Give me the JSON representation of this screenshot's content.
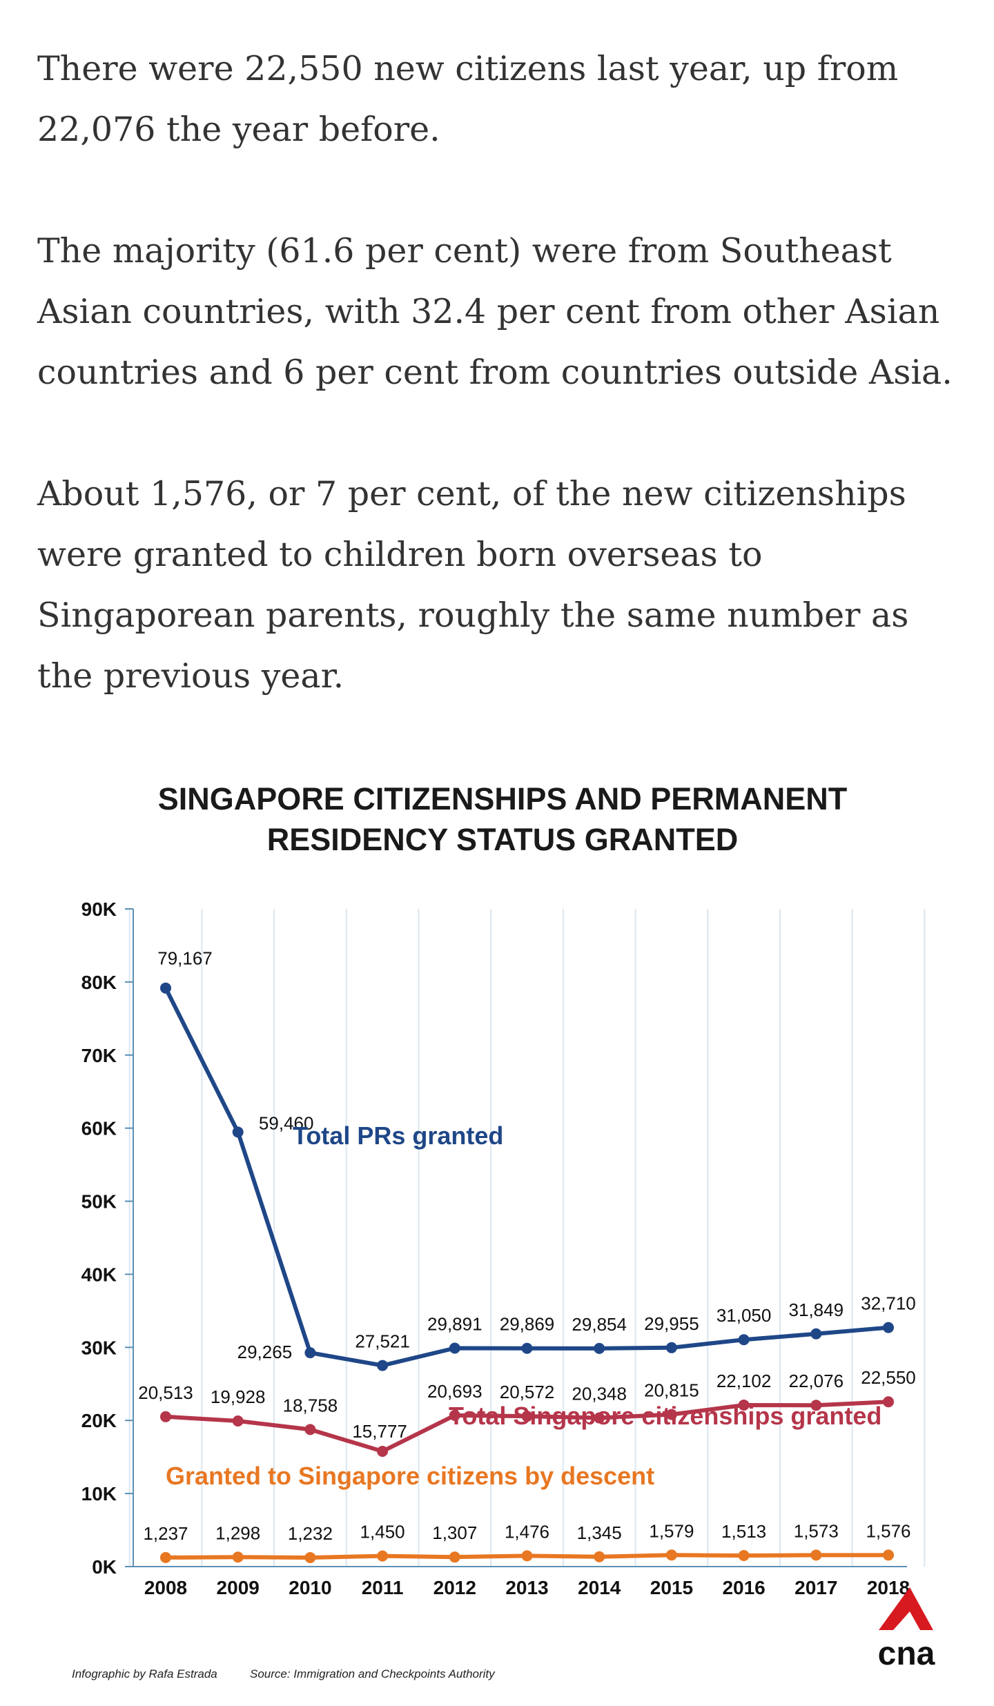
{
  "article": {
    "paragraphs": [
      "There were 22,550 new citizens last year, up from 22,076 the year before.",
      "The majority (61.6 per cent) were from Southeast Asian countries, with 32.4 per cent from other Asian countries and 6 per cent from countries outside Asia.",
      "About 1,576, or 7 per cent, of the new citizenships were granted to children born overseas to Singaporean parents, roughly the same number as the previous year."
    ]
  },
  "chart_data": {
    "type": "line",
    "title_lines": [
      "SINGAPORE CITIZENSHIPS AND PERMANENT",
      "RESIDENCY STATUS GRANTED"
    ],
    "categories": [
      "2008",
      "2009",
      "2010",
      "2011",
      "2012",
      "2013",
      "2014",
      "2015",
      "2016",
      "2017",
      "2018"
    ],
    "ylim": [
      0,
      90000
    ],
    "yticks": [
      0,
      10000,
      20000,
      30000,
      40000,
      50000,
      60000,
      70000,
      80000,
      90000
    ],
    "ytick_labels": [
      "0K",
      "10K",
      "20K",
      "30K",
      "40K",
      "50K",
      "60K",
      "70K",
      "80K",
      "90K"
    ],
    "grid": "vertical",
    "series": [
      {
        "name": "Total PRs granted",
        "color": "#1f4788",
        "values": [
          79167,
          59460,
          29265,
          27521,
          29891,
          29869,
          29854,
          29955,
          31050,
          31849,
          32710
        ],
        "labels": [
          "79,167",
          "59,460",
          "29,265",
          "27,521",
          "29,891",
          "29,869",
          "29,854",
          "29,955",
          "31,050",
          "31,849",
          "32,710"
        ]
      },
      {
        "name": "Total Singapore citizenships granted",
        "color": "#b5354a",
        "values": [
          20513,
          19928,
          18758,
          15777,
          20693,
          20572,
          20348,
          20815,
          22102,
          22076,
          22550
        ],
        "labels": [
          "20,513",
          "19,928",
          "18,758",
          "15,777",
          "20,693",
          "20,572",
          "20,348",
          "20,815",
          "22,102",
          "22,076",
          "22,550"
        ]
      },
      {
        "name": "Granted to Singapore citizens by descent",
        "color": "#e87722",
        "values": [
          1237,
          1298,
          1232,
          1450,
          1307,
          1476,
          1345,
          1579,
          1513,
          1573,
          1576
        ],
        "labels": [
          "1,237",
          "1,298",
          "1,232",
          "1,450",
          "1,307",
          "1,476",
          "1,345",
          "1,579",
          "1,513",
          "1,573",
          "1,576"
        ]
      }
    ]
  },
  "footer": {
    "credit": "Infographic by Rafa Estrada",
    "source": "Source: Immigration and Checkpoints Authority",
    "brand": "cna",
    "brand_color": "#d71920"
  }
}
